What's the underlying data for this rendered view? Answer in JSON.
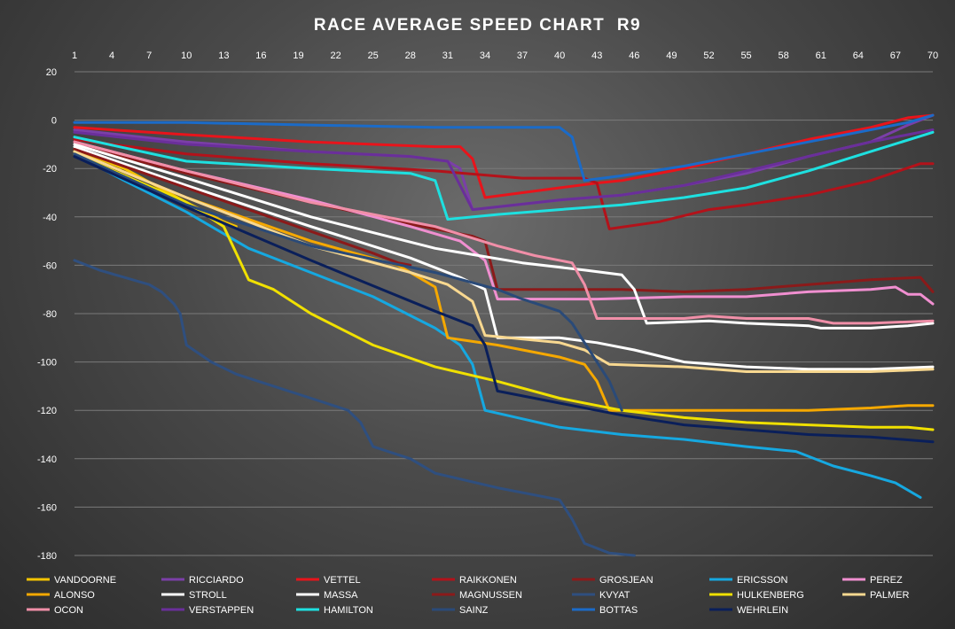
{
  "chart_data": {
    "type": "line",
    "title": "RACE AVERAGE SPEED CHART  R9",
    "x_ticks": [
      1,
      4,
      7,
      10,
      13,
      16,
      19,
      22,
      25,
      28,
      31,
      34,
      37,
      40,
      43,
      46,
      49,
      52,
      55,
      58,
      61,
      64,
      67,
      70
    ],
    "xlim": [
      1,
      70
    ],
    "ylim": [
      -180,
      20
    ],
    "y_ticks": [
      20,
      0,
      -20,
      -40,
      -60,
      -80,
      -100,
      -120,
      -140,
      -160,
      -180
    ],
    "grid": "horizontal",
    "x_axis_position": "top",
    "legend_position": "bottom",
    "series": [
      {
        "name": "VANDOORNE",
        "color": "#f5c400",
        "points": [
          [
            1,
            -12
          ],
          [
            5,
            -20
          ],
          [
            10,
            -34
          ],
          [
            13,
            -42
          ],
          [
            14,
            -44
          ]
        ]
      },
      {
        "name": "RICCIARDO",
        "color": "#7b3fa8",
        "points": [
          [
            1,
            -4
          ],
          [
            10,
            -9
          ],
          [
            20,
            -13
          ],
          [
            28,
            -15
          ],
          [
            31,
            -17
          ],
          [
            32,
            -20
          ],
          [
            33,
            -37
          ],
          [
            40,
            -33
          ],
          [
            45,
            -31
          ],
          [
            50,
            -27
          ],
          [
            55,
            -22
          ],
          [
            60,
            -15
          ],
          [
            65,
            -9
          ],
          [
            68,
            -2
          ],
          [
            70,
            2
          ]
        ]
      },
      {
        "name": "VETTEL",
        "color": "#e8141b",
        "points": [
          [
            1,
            -3
          ],
          [
            10,
            -6
          ],
          [
            20,
            -9
          ],
          [
            30,
            -11
          ],
          [
            32,
            -11
          ],
          [
            33,
            -16
          ],
          [
            34,
            -32
          ],
          [
            40,
            -28
          ],
          [
            43,
            -26
          ],
          [
            45,
            -25
          ],
          [
            50,
            -20
          ],
          [
            55,
            -14
          ],
          [
            60,
            -8
          ],
          [
            65,
            -3
          ],
          [
            68,
            1
          ],
          [
            70,
            2
          ]
        ]
      },
      {
        "name": "RAIKKONEN",
        "color": "#b3121a",
        "points": [
          [
            1,
            -8
          ],
          [
            10,
            -14
          ],
          [
            20,
            -18
          ],
          [
            30,
            -21
          ],
          [
            37,
            -24
          ],
          [
            42,
            -24
          ],
          [
            43,
            -26
          ],
          [
            44,
            -45
          ],
          [
            48,
            -42
          ],
          [
            52,
            -37
          ],
          [
            55,
            -35
          ],
          [
            60,
            -31
          ],
          [
            65,
            -25
          ],
          [
            69,
            -18
          ],
          [
            70,
            -18
          ]
        ]
      },
      {
        "name": "GROSJEAN",
        "color": "#8b1a1a",
        "points": [
          [
            1,
            -10
          ],
          [
            10,
            -22
          ],
          [
            20,
            -34
          ],
          [
            28,
            -43
          ],
          [
            33,
            -48
          ],
          [
            34,
            -50
          ],
          [
            35,
            -70
          ],
          [
            45,
            -70
          ],
          [
            50,
            -71
          ],
          [
            55,
            -70
          ],
          [
            60,
            -68
          ],
          [
            65,
            -66
          ],
          [
            69,
            -65
          ],
          [
            70,
            -71
          ]
        ]
      },
      {
        "name": "ERICSSON",
        "color": "#16a8e0",
        "points": [
          [
            1,
            -14
          ],
          [
            5,
            -25
          ],
          [
            10,
            -38
          ],
          [
            15,
            -53
          ],
          [
            20,
            -63
          ],
          [
            25,
            -73
          ],
          [
            30,
            -86
          ],
          [
            32,
            -93
          ],
          [
            33,
            -101
          ],
          [
            34,
            -120
          ],
          [
            40,
            -127
          ],
          [
            45,
            -130
          ],
          [
            50,
            -132
          ],
          [
            55,
            -135
          ],
          [
            59,
            -137
          ],
          [
            62,
            -143
          ],
          [
            65,
            -147
          ],
          [
            67,
            -150
          ],
          [
            69,
            -156
          ]
        ]
      },
      {
        "name": "PEREZ",
        "color": "#f08fd0",
        "points": [
          [
            1,
            -9
          ],
          [
            10,
            -21
          ],
          [
            20,
            -33
          ],
          [
            28,
            -44
          ],
          [
            32,
            -50
          ],
          [
            34,
            -58
          ],
          [
            35,
            -74
          ],
          [
            43,
            -74
          ],
          [
            50,
            -73
          ],
          [
            55,
            -73
          ],
          [
            60,
            -71
          ],
          [
            65,
            -70
          ],
          [
            67,
            -69
          ],
          [
            68,
            -72
          ],
          [
            69,
            -72
          ],
          [
            70,
            -76
          ]
        ]
      },
      {
        "name": "ALONSO",
        "color": "#f5a800",
        "points": [
          [
            1,
            -13
          ],
          [
            10,
            -32
          ],
          [
            20,
            -50
          ],
          [
            27,
            -60
          ],
          [
            29,
            -66
          ],
          [
            30,
            -69
          ],
          [
            31,
            -90
          ],
          [
            35,
            -93
          ],
          [
            40,
            -98
          ],
          [
            42,
            -101
          ],
          [
            43,
            -108
          ],
          [
            44,
            -120
          ],
          [
            50,
            -120
          ],
          [
            55,
            -120
          ],
          [
            60,
            -120
          ],
          [
            65,
            -119
          ],
          [
            68,
            -118
          ],
          [
            70,
            -118
          ]
        ]
      },
      {
        "name": "STROLL",
        "color": "#ffffff",
        "points": [
          [
            1,
            -11
          ],
          [
            10,
            -27
          ],
          [
            20,
            -44
          ],
          [
            28,
            -57
          ],
          [
            32,
            -65
          ],
          [
            34,
            -70
          ],
          [
            35,
            -90
          ],
          [
            40,
            -90
          ],
          [
            43,
            -92
          ],
          [
            46,
            -95
          ],
          [
            50,
            -100
          ],
          [
            55,
            -102
          ],
          [
            60,
            -103
          ],
          [
            65,
            -103
          ],
          [
            70,
            -102
          ]
        ]
      },
      {
        "name": "MASSA",
        "color": "#ffffff",
        "points": [
          [
            1,
            -10
          ],
          [
            10,
            -24
          ],
          [
            20,
            -40
          ],
          [
            30,
            -53
          ],
          [
            37,
            -59
          ],
          [
            42,
            -62
          ],
          [
            45,
            -64
          ],
          [
            46,
            -70
          ],
          [
            47,
            -84
          ],
          [
            52,
            -83
          ],
          [
            55,
            -84
          ],
          [
            60,
            -85
          ],
          [
            61,
            -86
          ],
          [
            65,
            -86
          ],
          [
            68,
            -85
          ],
          [
            70,
            -84
          ]
        ]
      },
      {
        "name": "MAGNUSSEN",
        "color": "#8b1a1a",
        "points": [
          [
            1,
            -12
          ],
          [
            10,
            -28
          ],
          [
            20,
            -46
          ],
          [
            25,
            -55
          ],
          [
            27,
            -59
          ],
          [
            28,
            -60
          ]
        ]
      },
      {
        "name": "KVYAT",
        "color": "#2f4f7f",
        "points": [
          [
            1,
            -58
          ],
          [
            3,
            -62
          ],
          [
            5,
            -65
          ],
          [
            7,
            -68
          ],
          [
            8,
            -71
          ],
          [
            9,
            -76
          ],
          [
            9.5,
            -80
          ],
          [
            10,
            -93
          ],
          [
            12,
            -100
          ],
          [
            14,
            -105
          ],
          [
            17,
            -110
          ],
          [
            20,
            -115
          ],
          [
            23,
            -120
          ],
          [
            24,
            -125
          ],
          [
            25,
            -135
          ],
          [
            28,
            -140
          ],
          [
            30,
            -146
          ],
          [
            35,
            -152
          ],
          [
            40,
            -157
          ],
          [
            41,
            -165
          ],
          [
            42,
            -175
          ],
          [
            44,
            -179
          ],
          [
            46,
            -180
          ]
        ]
      },
      {
        "name": "HULKENBERG",
        "color": "#f0e000",
        "points": [
          [
            1,
            -14
          ],
          [
            10,
            -34
          ],
          [
            13,
            -44
          ],
          [
            14,
            -55
          ],
          [
            15,
            -66
          ],
          [
            17,
            -70
          ],
          [
            20,
            -80
          ],
          [
            25,
            -93
          ],
          [
            30,
            -102
          ],
          [
            35,
            -108
          ],
          [
            40,
            -115
          ],
          [
            45,
            -120
          ],
          [
            50,
            -123
          ],
          [
            55,
            -125
          ],
          [
            60,
            -126
          ],
          [
            65,
            -127
          ],
          [
            68,
            -127
          ],
          [
            70,
            -128
          ]
        ]
      },
      {
        "name": "PALMER",
        "color": "#f8d890",
        "points": [
          [
            1,
            -13
          ],
          [
            10,
            -32
          ],
          [
            20,
            -52
          ],
          [
            28,
            -63
          ],
          [
            31,
            -68
          ],
          [
            33,
            -75
          ],
          [
            34,
            -89
          ],
          [
            40,
            -92
          ],
          [
            42,
            -95
          ],
          [
            44,
            -101
          ],
          [
            50,
            -102
          ],
          [
            55,
            -104
          ],
          [
            60,
            -104
          ],
          [
            65,
            -104
          ],
          [
            70,
            -103
          ]
        ]
      },
      {
        "name": "OCON",
        "color": "#f08fa8",
        "points": [
          [
            1,
            -9
          ],
          [
            10,
            -21
          ],
          [
            20,
            -34
          ],
          [
            30,
            -44
          ],
          [
            35,
            -52
          ],
          [
            38,
            -56
          ],
          [
            41,
            -59
          ],
          [
            42,
            -68
          ],
          [
            43,
            -82
          ],
          [
            47,
            -82
          ],
          [
            50,
            -82
          ],
          [
            52,
            -81
          ],
          [
            55,
            -82
          ],
          [
            60,
            -82
          ],
          [
            62,
            -84
          ],
          [
            65,
            -84
          ],
          [
            70,
            -83
          ]
        ]
      },
      {
        "name": "VERSTAPPEN",
        "color": "#6a2f9a",
        "points": [
          [
            1,
            -5
          ],
          [
            10,
            -10
          ],
          [
            20,
            -13
          ],
          [
            28,
            -15
          ],
          [
            31,
            -17
          ],
          [
            33,
            -37
          ],
          [
            40,
            -33
          ],
          [
            45,
            -31
          ],
          [
            50,
            -27
          ],
          [
            55,
            -21
          ],
          [
            60,
            -15
          ],
          [
            65,
            -9
          ],
          [
            70,
            -4
          ]
        ]
      },
      {
        "name": "HAMILTON",
        "color": "#1ee0e0",
        "points": [
          [
            1,
            -7
          ],
          [
            10,
            -17
          ],
          [
            20,
            -20
          ],
          [
            28,
            -22
          ],
          [
            30,
            -25
          ],
          [
            31,
            -41
          ],
          [
            35,
            -39
          ],
          [
            40,
            -37
          ],
          [
            45,
            -35
          ],
          [
            50,
            -32
          ],
          [
            55,
            -28
          ],
          [
            60,
            -21
          ],
          [
            65,
            -13
          ],
          [
            70,
            -5
          ]
        ]
      },
      {
        "name": "SAINZ",
        "color": "#2a4a78",
        "points": [
          [
            1,
            -14
          ],
          [
            10,
            -35
          ],
          [
            20,
            -52
          ],
          [
            30,
            -63
          ],
          [
            35,
            -70
          ],
          [
            37,
            -74
          ],
          [
            40,
            -79
          ],
          [
            41,
            -84
          ],
          [
            42,
            -92
          ],
          [
            43,
            -100
          ],
          [
            44,
            -108
          ],
          [
            45,
            -120
          ]
        ]
      },
      {
        "name": "BOTTAS",
        "color": "#1b6bc8",
        "points": [
          [
            1,
            -1
          ],
          [
            10,
            -1
          ],
          [
            20,
            -2
          ],
          [
            30,
            -3
          ],
          [
            36,
            -3
          ],
          [
            40,
            -3
          ],
          [
            41,
            -7
          ],
          [
            42,
            -25
          ],
          [
            45,
            -23
          ],
          [
            50,
            -19
          ],
          [
            55,
            -14
          ],
          [
            60,
            -9
          ],
          [
            65,
            -4
          ],
          [
            68,
            -1
          ],
          [
            70,
            2
          ]
        ]
      },
      {
        "name": "WEHRLEIN",
        "color": "#0a1f5a",
        "points": [
          [
            1,
            -15
          ],
          [
            10,
            -36
          ],
          [
            20,
            -58
          ],
          [
            30,
            -79
          ],
          [
            33,
            -85
          ],
          [
            34,
            -93
          ],
          [
            35,
            -112
          ],
          [
            40,
            -117
          ],
          [
            45,
            -122
          ],
          [
            50,
            -126
          ],
          [
            55,
            -128
          ],
          [
            60,
            -130
          ],
          [
            65,
            -131
          ],
          [
            70,
            -133
          ]
        ]
      }
    ]
  }
}
